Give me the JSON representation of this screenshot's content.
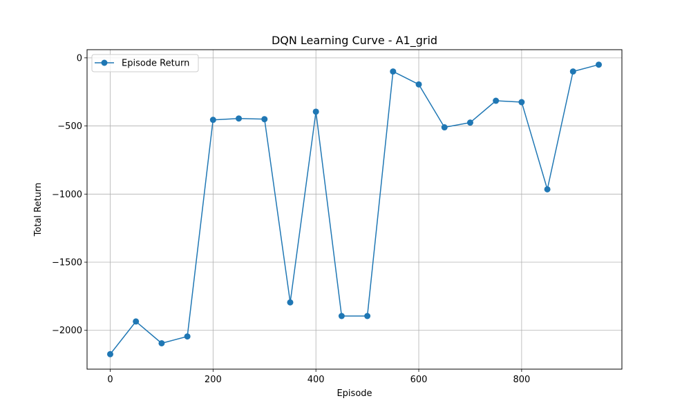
{
  "chart_data": {
    "type": "line",
    "title": "DQN Learning Curve - A1_grid",
    "xlabel": "Episode",
    "ylabel": "Total Return",
    "xlim": [
      -45,
      995
    ],
    "ylim": [
      -2285,
      60
    ],
    "xticks": [
      0,
      200,
      400,
      600,
      800
    ],
    "xtick_labels": [
      "0",
      "200",
      "400",
      "600",
      "800"
    ],
    "yticks": [
      -2000,
      -1500,
      -1000,
      -500,
      0
    ],
    "ytick_labels": [
      "−2000",
      "−1500",
      "−1000",
      "−500",
      "0"
    ],
    "grid": true,
    "legend": {
      "position": "upper-left"
    },
    "series": [
      {
        "name": "Episode Return",
        "color": "#1f77b4",
        "marker": "circle",
        "x": [
          0,
          50,
          100,
          150,
          200,
          250,
          300,
          350,
          400,
          450,
          500,
          550,
          600,
          650,
          700,
          750,
          800,
          850,
          900,
          950
        ],
        "y": [
          -2175,
          -1935,
          -2095,
          -2045,
          -455,
          -445,
          -450,
          -1795,
          -395,
          -1895,
          -1895,
          -100,
          -195,
          -510,
          -475,
          -315,
          -325,
          -965,
          -100,
          -50
        ]
      }
    ]
  }
}
